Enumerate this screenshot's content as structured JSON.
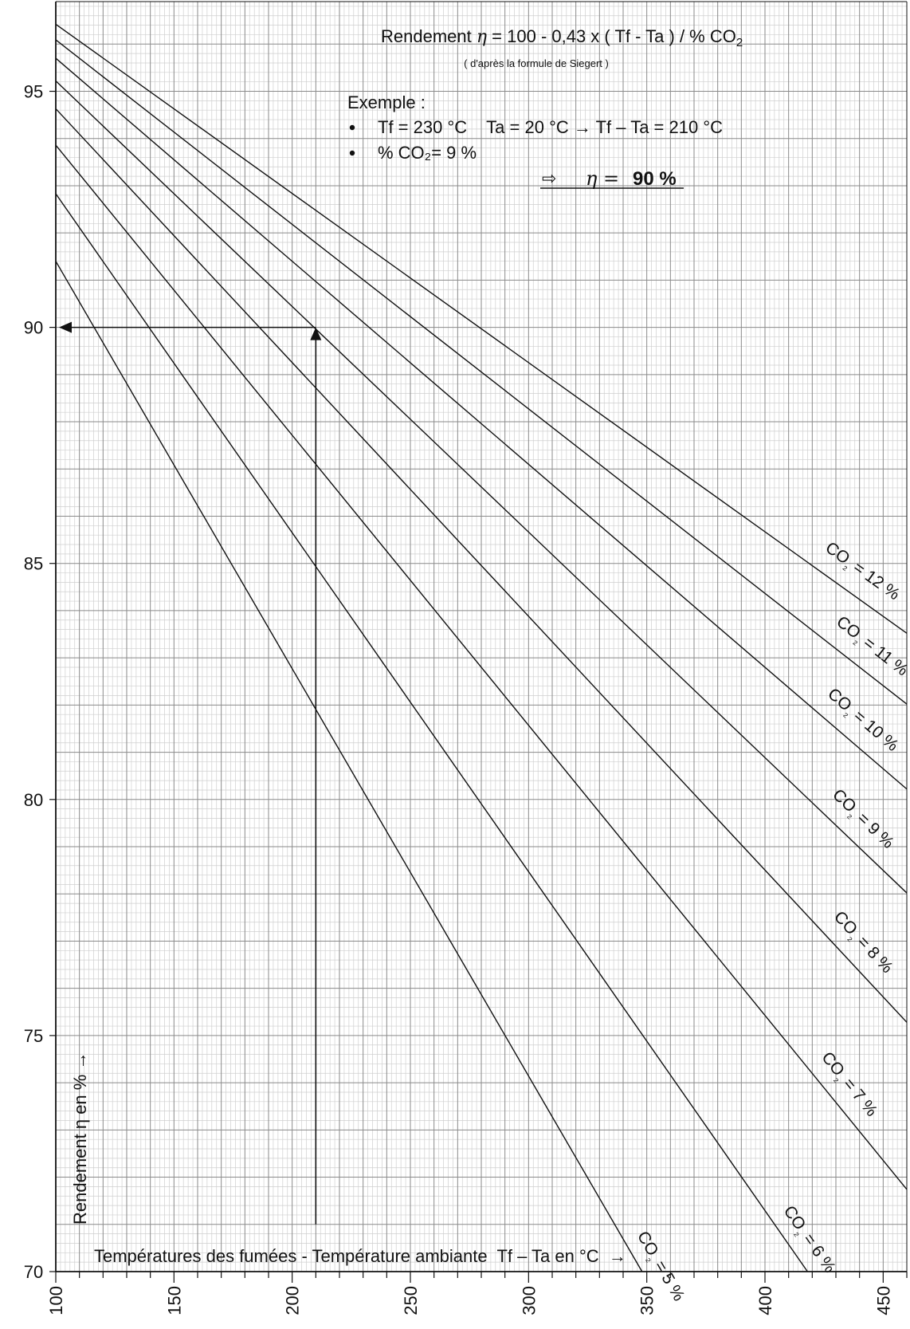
{
  "chart_data": {
    "type": "line",
    "title": "Rendement η = 100 - 0,43 x ( Tf - Ta ) / % CO2",
    "subtitle": "( d'après la formule de Siegert )",
    "xlabel": "Températures des fumées - Température ambiante  Tf – Ta en °C  →",
    "ylabel": "Rendement η en % →",
    "xlim": [
      100,
      460
    ],
    "ylim": [
      70,
      96.9
    ],
    "x_ticks": [
      "100",
      "150",
      "200",
      "250",
      "300",
      "350",
      "400",
      "450"
    ],
    "y_ticks": [
      "70",
      "75",
      "80",
      "85",
      "90",
      "95"
    ],
    "grid": true,
    "series": [
      {
        "name": "CO2 = 5 %",
        "co2": 5,
        "x": [
          100,
          348
        ],
        "y": [
          91.4,
          70
        ]
      },
      {
        "name": "CO2 = 6 %",
        "co2": 6,
        "x": [
          100,
          418
        ],
        "y": [
          92.83,
          70
        ]
      },
      {
        "name": "CO2 = 7 %",
        "co2": 7,
        "x": [
          100,
          460
        ],
        "y": [
          93.86,
          71.74
        ]
      },
      {
        "name": "CO2 = 8 %",
        "co2": 8,
        "x": [
          100,
          460
        ],
        "y": [
          94.63,
          75.28
        ]
      },
      {
        "name": "CO2 = 9 %",
        "co2": 9,
        "x": [
          100,
          460
        ],
        "y": [
          95.22,
          78.02
        ]
      },
      {
        "name": "CO2 = 10 %",
        "co2": 10,
        "x": [
          100,
          460
        ],
        "y": [
          95.7,
          80.22
        ]
      },
      {
        "name": "CO2 = 11 %",
        "co2": 11,
        "x": [
          100,
          460
        ],
        "y": [
          96.09,
          82.02
        ]
      },
      {
        "name": "CO2 = 12 %",
        "co2": 12,
        "x": [
          100,
          460
        ],
        "y": [
          96.42,
          83.52
        ]
      }
    ],
    "series_labels": [
      {
        "text": "CO₂ = 5 %",
        "co2": 5
      },
      {
        "text": "CO₂ = 6 %",
        "co2": 6
      },
      {
        "text": "CO₂ = 7 %",
        "co2": 7
      },
      {
        "text": "CO₂ = 8 %",
        "co2": 8
      },
      {
        "text": "CO₂ = 9 %",
        "co2": 9
      },
      {
        "text": "CO₂ = 10 %",
        "co2": 10
      },
      {
        "text": "CO₂ = 11 %",
        "co2": 11
      },
      {
        "text": "CO₂ = 12 %",
        "co2": 12
      }
    ],
    "example": {
      "heading": "Exemple :",
      "line1": "Tf = 230 °C    Ta = 20 °C → Tf – Ta = 210 °C",
      "line2": "% CO₂= 9 %",
      "result_arrow": "⇨",
      "result_label": "η =",
      "result_value": "90 %",
      "x_value": 210,
      "y_value": 90
    }
  }
}
